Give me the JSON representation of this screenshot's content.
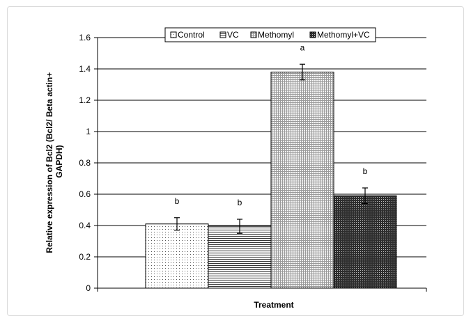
{
  "chart_data": {
    "type": "bar",
    "xlabel": "Treatment",
    "ylabel": "Relative expression of Bcl2 (Bcl2/ Beta actin+ GAPDH)",
    "ylim": [
      0,
      1.6
    ],
    "yticks": [
      "0",
      "0.2",
      "0.4",
      "0.6",
      "0.8",
      "1",
      "1.2",
      "1.4",
      "1.6"
    ],
    "grid": "horizontal",
    "legend_position": "top",
    "series": [
      {
        "name": "Control",
        "value": 0.41,
        "error": 0.04,
        "label": "b",
        "pattern": "dots"
      },
      {
        "name": "VC",
        "value": 0.395,
        "error": 0.045,
        "label": "b",
        "pattern": "hlines"
      },
      {
        "name": "Methomyl",
        "value": 1.38,
        "error": 0.05,
        "label": "a",
        "pattern": "grid"
      },
      {
        "name": "Methomyl+VC",
        "value": 0.59,
        "error": 0.05,
        "label": "b",
        "pattern": "dense-dots"
      }
    ]
  }
}
